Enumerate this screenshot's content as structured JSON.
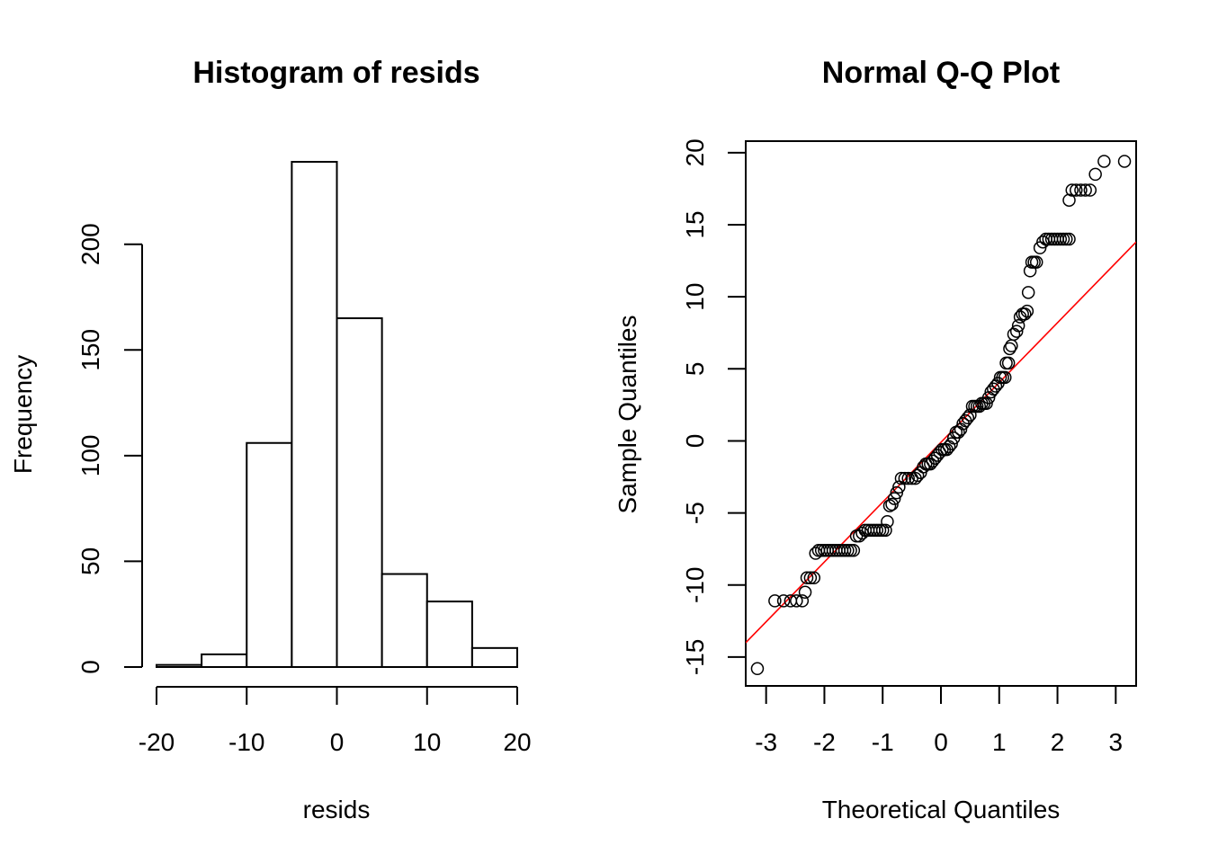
{
  "chart_data": [
    {
      "type": "bar",
      "subtype": "histogram",
      "title": "Histogram of resids",
      "xlabel": "resids",
      "ylabel": "Frequency",
      "bin_edges": [
        -20,
        -15,
        -10,
        -5,
        0,
        5,
        10,
        15,
        20
      ],
      "values": [
        1,
        6,
        106,
        239,
        165,
        44,
        31,
        9
      ],
      "xlim": [
        -20,
        20
      ],
      "ylim": [
        0,
        239
      ],
      "x_ticks": [
        "-20",
        "-10",
        "0",
        "10",
        "20"
      ],
      "y_ticks": [
        "0",
        "50",
        "100",
        "150",
        "200"
      ],
      "grid": false,
      "fill": "#ffffff",
      "stroke": "#000000"
    },
    {
      "type": "scatter",
      "subtype": "qq",
      "title": "Normal Q-Q Plot",
      "xlabel": "Theoretical Quantiles",
      "ylabel": "Sample Quantiles",
      "xlim": [
        -3.35,
        3.35
      ],
      "ylim": [
        -17,
        20.8
      ],
      "x_ticks": [
        "-3",
        "-2",
        "-1",
        "0",
        "1",
        "2",
        "3"
      ],
      "y_ticks": [
        "-15",
        "-10",
        "-5",
        "0",
        "5",
        "10",
        "15",
        "20"
      ],
      "grid": false,
      "points": [
        [
          -3.15,
          -15.8
        ],
        [
          -2.85,
          -11.1
        ],
        [
          -2.7,
          -11.1
        ],
        [
          -2.58,
          -11.1
        ],
        [
          -2.48,
          -11.1
        ],
        [
          -2.38,
          -11.1
        ],
        [
          -2.33,
          -10.5
        ],
        [
          -2.3,
          -9.5
        ],
        [
          -2.24,
          -9.5
        ],
        [
          -2.18,
          -9.5
        ],
        [
          -2.15,
          -7.8
        ],
        [
          -2.1,
          -7.6
        ],
        [
          -2.05,
          -7.6
        ],
        [
          -2.0,
          -7.6
        ],
        [
          -1.95,
          -7.6
        ],
        [
          -1.9,
          -7.6
        ],
        [
          -1.85,
          -7.6
        ],
        [
          -1.8,
          -7.6
        ],
        [
          -1.75,
          -7.6
        ],
        [
          -1.7,
          -7.6
        ],
        [
          -1.65,
          -7.6
        ],
        [
          -1.6,
          -7.6
        ],
        [
          -1.55,
          -7.6
        ],
        [
          -1.5,
          -7.6
        ],
        [
          -1.45,
          -6.6
        ],
        [
          -1.4,
          -6.6
        ],
        [
          -1.35,
          -6.4
        ],
        [
          -1.3,
          -6.2
        ],
        [
          -1.25,
          -6.2
        ],
        [
          -1.2,
          -6.2
        ],
        [
          -1.15,
          -6.2
        ],
        [
          -1.1,
          -6.2
        ],
        [
          -1.05,
          -6.2
        ],
        [
          -1.0,
          -6.2
        ],
        [
          -0.95,
          -6.2
        ],
        [
          -0.92,
          -5.6
        ],
        [
          -0.88,
          -4.5
        ],
        [
          -0.84,
          -4.4
        ],
        [
          -0.8,
          -4.0
        ],
        [
          -0.76,
          -3.6
        ],
        [
          -0.72,
          -3.2
        ],
        [
          -0.68,
          -2.6
        ],
        [
          -0.62,
          -2.6
        ],
        [
          -0.56,
          -2.6
        ],
        [
          -0.5,
          -2.6
        ],
        [
          -0.44,
          -2.6
        ],
        [
          -0.4,
          -2.4
        ],
        [
          -0.35,
          -2.2
        ],
        [
          -0.3,
          -1.8
        ],
        [
          -0.26,
          -1.6
        ],
        [
          -0.22,
          -1.6
        ],
        [
          -0.18,
          -1.6
        ],
        [
          -0.14,
          -1.4
        ],
        [
          -0.1,
          -1.2
        ],
        [
          -0.06,
          -1.0
        ],
        [
          -0.02,
          -0.8
        ],
        [
          0.02,
          -0.6
        ],
        [
          0.06,
          -0.6
        ],
        [
          0.1,
          -0.6
        ],
        [
          0.14,
          -0.4
        ],
        [
          0.18,
          -0.2
        ],
        [
          0.22,
          0.2
        ],
        [
          0.26,
          0.6
        ],
        [
          0.3,
          0.6
        ],
        [
          0.34,
          0.8
        ],
        [
          0.38,
          1.2
        ],
        [
          0.42,
          1.4
        ],
        [
          0.46,
          1.6
        ],
        [
          0.5,
          1.8
        ],
        [
          0.54,
          2.4
        ],
        [
          0.58,
          2.4
        ],
        [
          0.62,
          2.4
        ],
        [
          0.66,
          2.4
        ],
        [
          0.7,
          2.6
        ],
        [
          0.74,
          2.6
        ],
        [
          0.78,
          2.6
        ],
        [
          0.82,
          3.0
        ],
        [
          0.86,
          3.4
        ],
        [
          0.9,
          3.6
        ],
        [
          0.94,
          3.8
        ],
        [
          0.98,
          4.0
        ],
        [
          1.02,
          4.4
        ],
        [
          1.06,
          4.4
        ],
        [
          1.1,
          4.4
        ],
        [
          1.12,
          5.4
        ],
        [
          1.16,
          5.4
        ],
        [
          1.18,
          6.4
        ],
        [
          1.21,
          6.6
        ],
        [
          1.25,
          7.4
        ],
        [
          1.3,
          7.6
        ],
        [
          1.33,
          8.0
        ],
        [
          1.36,
          8.6
        ],
        [
          1.4,
          8.8
        ],
        [
          1.44,
          8.8
        ],
        [
          1.48,
          9.0
        ],
        [
          1.5,
          10.3
        ],
        [
          1.53,
          11.8
        ],
        [
          1.56,
          12.4
        ],
        [
          1.6,
          12.4
        ],
        [
          1.64,
          12.4
        ],
        [
          1.7,
          13.4
        ],
        [
          1.75,
          13.8
        ],
        [
          1.8,
          14.0
        ],
        [
          1.85,
          14.0
        ],
        [
          1.9,
          14.0
        ],
        [
          1.95,
          14.0
        ],
        [
          2.0,
          14.0
        ],
        [
          2.05,
          14.0
        ],
        [
          2.1,
          14.0
        ],
        [
          2.15,
          14.0
        ],
        [
          2.2,
          14.0
        ],
        [
          2.2,
          16.7
        ],
        [
          2.25,
          17.4
        ],
        [
          2.32,
          17.4
        ],
        [
          2.4,
          17.4
        ],
        [
          2.48,
          17.4
        ],
        [
          2.56,
          17.4
        ],
        [
          2.65,
          18.5
        ],
        [
          2.8,
          19.4
        ],
        [
          3.15,
          19.4
        ]
      ],
      "reference_line": {
        "intercept": -0.1,
        "slope": 4.15,
        "color": "#ff0000"
      }
    }
  ]
}
